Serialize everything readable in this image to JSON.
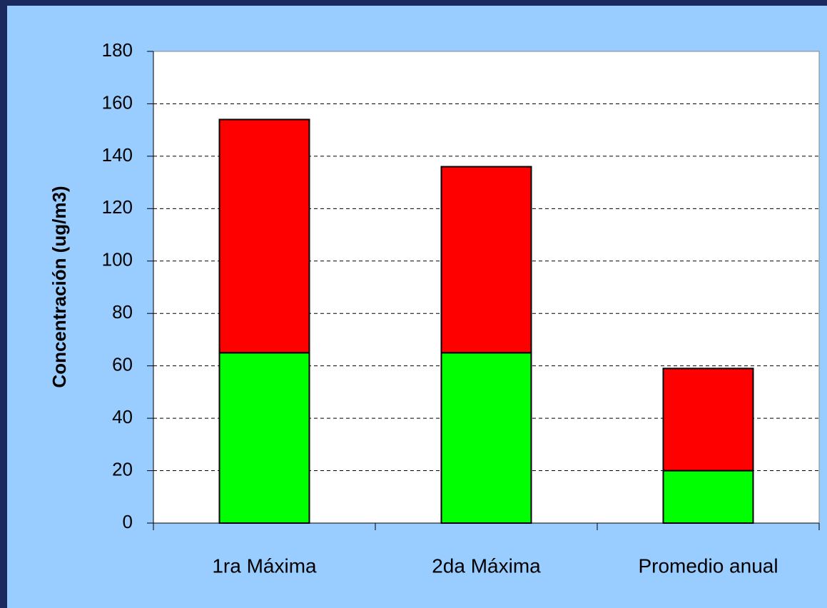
{
  "chart_data": {
    "type": "stacked_bar",
    "y_label": "Concentración (ug/m3)",
    "categories": [
      "1ra Máxima",
      "2da Máxima",
      "Promedio anual"
    ],
    "series": [
      {
        "color": "#00ff00",
        "values": [
          65,
          65,
          20
        ]
      },
      {
        "color": "#ff0000",
        "values": [
          89,
          71,
          39
        ]
      }
    ],
    "ylim": [
      0,
      180
    ],
    "yticks": [
      0,
      20,
      40,
      60,
      80,
      100,
      120,
      140,
      160,
      180
    ],
    "grid": true
  }
}
